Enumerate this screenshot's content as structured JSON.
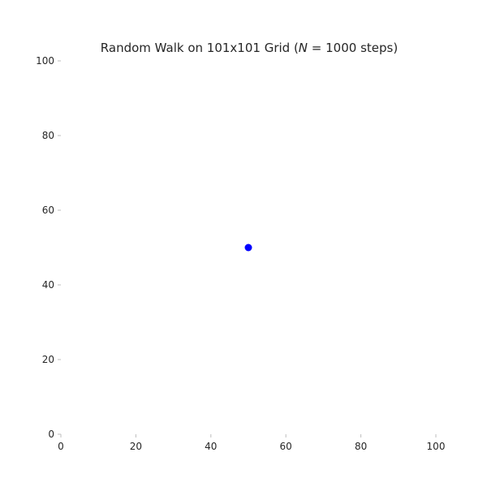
{
  "chart_data": {
    "type": "scatter",
    "title": "Random Walk on 101x101 Grid (",
    "title_symbol": "N",
    "title_suffix": " = 1000 steps)",
    "xlabel": "",
    "ylabel": "",
    "xlim": [
      0,
      100
    ],
    "ylim": [
      0,
      100
    ],
    "xticks": [
      0,
      20,
      40,
      60,
      80,
      100
    ],
    "yticks": [
      0,
      20,
      40,
      60,
      80,
      100
    ],
    "grid": false,
    "marker_color": "#0000ff",
    "points": [
      {
        "x": 50,
        "y": 50
      }
    ]
  }
}
